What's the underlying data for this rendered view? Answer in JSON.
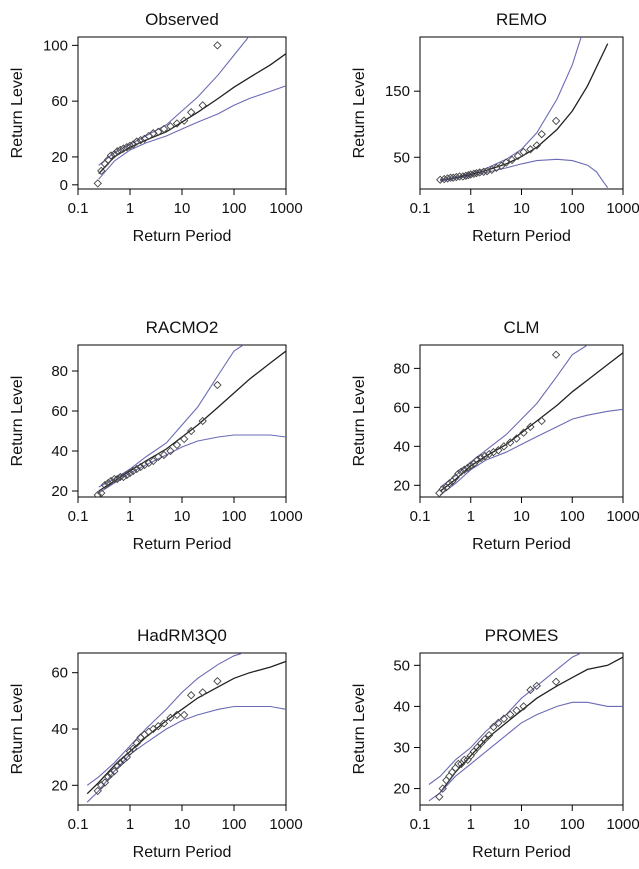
{
  "colors": {
    "fit": "#222222",
    "ci": "#6b6bb5",
    "points": "#444444",
    "axis": "#000000"
  },
  "chart_data": [
    {
      "type": "scatter",
      "title": "Observed",
      "xlabel": "Return Period",
      "ylabel": "Return Level",
      "xscale": "log",
      "xlim": [
        0.1,
        1000
      ],
      "ylim": [
        -3,
        106
      ],
      "xticks": [
        {
          "v": 0.1,
          "label": "0.1"
        },
        {
          "v": 1,
          "label": "1"
        },
        {
          "v": 10,
          "label": "10"
        },
        {
          "v": 100,
          "label": "100"
        },
        {
          "v": 1000,
          "label": "1000"
        }
      ],
      "yticks": [
        {
          "v": 0,
          "label": "0"
        },
        {
          "v": 20,
          "label": "20"
        },
        {
          "v": 60,
          "label": "60"
        },
        {
          "v": 100,
          "label": "100"
        }
      ],
      "series": [
        {
          "role": "fit",
          "x": [
            0.25,
            0.5,
            1,
            2,
            5,
            10,
            20,
            50,
            100,
            200,
            500,
            1000
          ],
          "y": [
            8,
            20,
            27,
            32,
            38,
            45,
            52,
            62,
            70,
            77,
            86,
            94
          ]
        },
        {
          "role": "upper_ci",
          "x": [
            0.25,
            0.5,
            1,
            2,
            5,
            10,
            20,
            50,
            100,
            200
          ],
          "y": [
            14,
            23,
            29,
            35,
            43,
            53,
            63,
            79,
            93,
            107
          ]
        },
        {
          "role": "lower_ci",
          "x": [
            0.25,
            0.5,
            1,
            2,
            5,
            10,
            20,
            50,
            100,
            200,
            500,
            1000
          ],
          "y": [
            4,
            17,
            25,
            30,
            35,
            40,
            45,
            51,
            57,
            62,
            67,
            71
          ]
        },
        {
          "role": "points",
          "x": [
            0.24,
            0.28,
            0.33,
            0.38,
            0.43,
            0.5,
            0.57,
            0.65,
            0.75,
            0.87,
            1.0,
            1.15,
            1.35,
            1.6,
            1.9,
            2.3,
            2.8,
            3.5,
            4.5,
            6.0,
            8.0,
            11,
            15,
            25,
            48
          ],
          "y": [
            1,
            10,
            15,
            18,
            21,
            22,
            24,
            25,
            26,
            27,
            28,
            29,
            31,
            32,
            33,
            35,
            37,
            38,
            40,
            42,
            44,
            46,
            52,
            57,
            100
          ]
        }
      ]
    },
    {
      "type": "scatter",
      "title": "REMO",
      "xlabel": "Return Period",
      "ylabel": "Return Level",
      "xscale": "log",
      "xlim": [
        0.1,
        1000
      ],
      "ylim": [
        2,
        232
      ],
      "xticks": [
        {
          "v": 0.1,
          "label": "0.1"
        },
        {
          "v": 1,
          "label": "1"
        },
        {
          "v": 10,
          "label": "10"
        },
        {
          "v": 100,
          "label": "100"
        },
        {
          "v": 1000,
          "label": "1000"
        }
      ],
      "yticks": [
        {
          "v": 50,
          "label": "50"
        },
        {
          "v": 150,
          "label": "150"
        }
      ],
      "series": [
        {
          "role": "fit",
          "x": [
            0.25,
            0.5,
            1,
            2,
            5,
            10,
            20,
            50,
            100,
            200,
            500
          ],
          "y": [
            15,
            19,
            24,
            30,
            40,
            51,
            65,
            92,
            120,
            158,
            222
          ]
        },
        {
          "role": "upper_ci",
          "x": [
            0.25,
            0.5,
            1,
            2,
            5,
            10,
            20,
            50,
            100,
            150
          ],
          "y": [
            16,
            20,
            26,
            33,
            47,
            62,
            87,
            138,
            190,
            232
          ]
        },
        {
          "role": "lower_ci",
          "x": [
            0.25,
            0.5,
            1,
            2,
            5,
            10,
            20,
            50,
            100,
            200,
            300,
            400,
            500
          ],
          "y": [
            14,
            18,
            22,
            27,
            34,
            40,
            45,
            47,
            45,
            38,
            28,
            14,
            4
          ]
        },
        {
          "role": "points",
          "x": [
            0.25,
            0.3,
            0.35,
            0.4,
            0.45,
            0.52,
            0.6,
            0.7,
            0.8,
            0.9,
            1.0,
            1.15,
            1.3,
            1.5,
            1.8,
            2.1,
            2.6,
            3.2,
            4.0,
            5.0,
            6.5,
            8.5,
            11,
            15,
            20,
            25,
            48
          ],
          "y": [
            16,
            17,
            18,
            19,
            19,
            20,
            21,
            21,
            22,
            23,
            24,
            25,
            26,
            27,
            28,
            29,
            31,
            34,
            37,
            42,
            46,
            52,
            58,
            62,
            68,
            85,
            105
          ]
        }
      ]
    },
    {
      "type": "scatter",
      "title": "RACMO2",
      "xlabel": "Return Period",
      "ylabel": "Return Level",
      "xscale": "log",
      "xlim": [
        0.1,
        1000
      ],
      "ylim": [
        17,
        93
      ],
      "xticks": [
        {
          "v": 0.1,
          "label": "0.1"
        },
        {
          "v": 1,
          "label": "1"
        },
        {
          "v": 10,
          "label": "10"
        },
        {
          "v": 100,
          "label": "100"
        },
        {
          "v": 1000,
          "label": "1000"
        }
      ],
      "yticks": [
        {
          "v": 20,
          "label": "20"
        },
        {
          "v": 40,
          "label": "40"
        },
        {
          "v": 60,
          "label": "60"
        },
        {
          "v": 80,
          "label": "80"
        }
      ],
      "series": [
        {
          "role": "fit",
          "x": [
            0.25,
            0.5,
            1,
            2,
            5,
            10,
            20,
            50,
            100,
            200,
            500,
            1000
          ],
          "y": [
            20,
            25,
            30,
            35,
            41,
            47,
            53,
            62,
            69,
            76,
            84,
            90
          ]
        },
        {
          "role": "upper_ci",
          "x": [
            0.25,
            0.5,
            1,
            2,
            5,
            10,
            20,
            50,
            100,
            150
          ],
          "y": [
            22,
            26,
            31,
            37,
            44,
            53,
            62,
            78,
            90,
            93
          ]
        },
        {
          "role": "lower_ci",
          "x": [
            0.25,
            0.5,
            1,
            2,
            5,
            10,
            20,
            50,
            100,
            200,
            500,
            1000
          ],
          "y": [
            19,
            24,
            29,
            33,
            38,
            42,
            45,
            47,
            48,
            48,
            48,
            47
          ]
        },
        {
          "role": "points",
          "x": [
            0.24,
            0.28,
            0.33,
            0.38,
            0.43,
            0.5,
            0.57,
            0.65,
            0.75,
            0.87,
            1.0,
            1.15,
            1.35,
            1.6,
            1.9,
            2.3,
            2.8,
            3.5,
            4.5,
            6.0,
            8.0,
            11,
            15,
            25,
            48
          ],
          "y": [
            18,
            19,
            23,
            24,
            25,
            26,
            26,
            27,
            27,
            28,
            29,
            30,
            31,
            32,
            33,
            34,
            35,
            37,
            38,
            40,
            43,
            46,
            50,
            55,
            73
          ]
        }
      ]
    },
    {
      "type": "scatter",
      "title": "CLM",
      "xlabel": "Return Period",
      "ylabel": "Return Level",
      "xscale": "log",
      "xlim": [
        0.1,
        1000
      ],
      "ylim": [
        14,
        92
      ],
      "xticks": [
        {
          "v": 0.1,
          "label": "0.1"
        },
        {
          "v": 1,
          "label": "1"
        },
        {
          "v": 10,
          "label": "10"
        },
        {
          "v": 100,
          "label": "100"
        },
        {
          "v": 1000,
          "label": "1000"
        }
      ],
      "yticks": [
        {
          "v": 20,
          "label": "20"
        },
        {
          "v": 40,
          "label": "40"
        },
        {
          "v": 60,
          "label": "60"
        },
        {
          "v": 80,
          "label": "80"
        }
      ],
      "series": [
        {
          "role": "fit",
          "x": [
            0.25,
            0.5,
            1,
            2,
            5,
            10,
            20,
            50,
            100,
            200,
            500,
            1000
          ],
          "y": [
            17,
            23,
            30,
            35,
            41,
            47,
            53,
            61,
            68,
            74,
            82,
            88
          ]
        },
        {
          "role": "upper_ci",
          "x": [
            0.25,
            0.5,
            1,
            2,
            5,
            10,
            20,
            50,
            100,
            200
          ],
          "y": [
            19,
            25,
            32,
            38,
            46,
            54,
            62,
            76,
            87,
            92
          ]
        },
        {
          "role": "lower_ci",
          "x": [
            0.25,
            0.5,
            1,
            2,
            5,
            10,
            20,
            50,
            100,
            200,
            500,
            1000
          ],
          "y": [
            15,
            21,
            28,
            33,
            37,
            41,
            45,
            50,
            54,
            56,
            58,
            59
          ]
        },
        {
          "role": "points",
          "x": [
            0.24,
            0.28,
            0.33,
            0.38,
            0.43,
            0.5,
            0.57,
            0.65,
            0.75,
            0.87,
            1.0,
            1.15,
            1.35,
            1.6,
            1.9,
            2.3,
            2.8,
            3.5,
            4.5,
            6.0,
            8.0,
            11,
            15,
            25,
            48
          ],
          "y": [
            16,
            18,
            19,
            21,
            22,
            24,
            26,
            27,
            28,
            29,
            30,
            31,
            33,
            34,
            35,
            36,
            37,
            38,
            40,
            42,
            44,
            47,
            50,
            53,
            87
          ]
        }
      ]
    },
    {
      "type": "scatter",
      "title": "HadRM3Q0",
      "xlabel": "Return Period",
      "ylabel": "Return Level",
      "xscale": "log",
      "xlim": [
        0.1,
        1000
      ],
      "ylim": [
        13,
        67
      ],
      "xticks": [
        {
          "v": 0.1,
          "label": "0.1"
        },
        {
          "v": 1,
          "label": "1"
        },
        {
          "v": 10,
          "label": "10"
        },
        {
          "v": 100,
          "label": "100"
        },
        {
          "v": 1000,
          "label": "1000"
        }
      ],
      "yticks": [
        {
          "v": 20,
          "label": "20"
        },
        {
          "v": 40,
          "label": "40"
        },
        {
          "v": 60,
          "label": "60"
        }
      ],
      "series": [
        {
          "role": "fit",
          "x": [
            0.15,
            0.25,
            0.5,
            1,
            2,
            5,
            10,
            20,
            50,
            100,
            200,
            500,
            1000
          ],
          "y": [
            17,
            21,
            27,
            32,
            37,
            43,
            47,
            51,
            55,
            58,
            60,
            62,
            64
          ]
        },
        {
          "role": "upper_ci",
          "x": [
            0.15,
            0.25,
            0.5,
            1,
            2,
            5,
            10,
            20,
            50,
            100,
            150
          ],
          "y": [
            20,
            23,
            28,
            34,
            40,
            47,
            53,
            58,
            63,
            66,
            67
          ]
        },
        {
          "role": "lower_ci",
          "x": [
            0.15,
            0.25,
            0.5,
            1,
            2,
            5,
            10,
            20,
            50,
            100,
            200,
            500,
            1000
          ],
          "y": [
            14,
            18,
            25,
            31,
            35,
            40,
            43,
            45,
            47,
            48,
            48,
            48,
            47
          ]
        },
        {
          "role": "points",
          "x": [
            0.24,
            0.28,
            0.33,
            0.38,
            0.43,
            0.5,
            0.57,
            0.65,
            0.75,
            0.87,
            1.0,
            1.15,
            1.35,
            1.6,
            1.9,
            2.3,
            2.8,
            3.5,
            4.5,
            6.0,
            8.0,
            11,
            15,
            25,
            48
          ],
          "y": [
            18,
            20,
            21,
            23,
            24,
            25,
            27,
            28,
            29,
            30,
            32,
            33,
            35,
            37,
            38,
            39,
            40,
            41,
            42,
            44,
            45,
            45,
            52,
            53,
            57
          ]
        }
      ]
    },
    {
      "type": "scatter",
      "title": "PROMES",
      "xlabel": "Return Period",
      "ylabel": "Return Level",
      "xscale": "log",
      "xlim": [
        0.1,
        1000
      ],
      "ylim": [
        16,
        53
      ],
      "xticks": [
        {
          "v": 0.1,
          "label": "0.1"
        },
        {
          "v": 1,
          "label": "1"
        },
        {
          "v": 10,
          "label": "10"
        },
        {
          "v": 100,
          "label": "100"
        },
        {
          "v": 1000,
          "label": "1000"
        }
      ],
      "yticks": [
        {
          "v": 20,
          "label": "20"
        },
        {
          "v": 30,
          "label": "30"
        },
        {
          "v": 40,
          "label": "40"
        },
        {
          "v": 50,
          "label": "50"
        }
      ],
      "series": [
        {
          "role": "fit",
          "x": [
            0.25,
            0.5,
            1,
            2,
            5,
            10,
            20,
            50,
            100,
            200,
            500,
            1000
          ],
          "y": [
            19,
            24,
            28,
            32,
            36,
            39,
            42,
            45,
            47,
            49,
            50,
            52
          ]
        },
        {
          "role": "upper_ci",
          "x": [
            0.15,
            0.25,
            0.5,
            1,
            2,
            5,
            10,
            20,
            50,
            100,
            150
          ],
          "y": [
            21,
            23,
            27,
            30,
            34,
            38,
            42,
            45,
            49,
            52,
            53
          ]
        },
        {
          "role": "lower_ci",
          "x": [
            0.15,
            0.25,
            0.5,
            1,
            2,
            5,
            10,
            20,
            50,
            100,
            200,
            500,
            1000
          ],
          "y": [
            17,
            19,
            23,
            26,
            29,
            33,
            36,
            38,
            40,
            41,
            41,
            40,
            40
          ]
        },
        {
          "role": "points",
          "x": [
            0.24,
            0.28,
            0.33,
            0.38,
            0.43,
            0.5,
            0.57,
            0.65,
            0.75,
            0.87,
            1.0,
            1.15,
            1.35,
            1.6,
            1.9,
            2.3,
            2.8,
            3.5,
            4.5,
            6.0,
            8.0,
            11,
            15,
            20,
            48
          ],
          "y": [
            18,
            20,
            22,
            23,
            24,
            25,
            26,
            26,
            27,
            27,
            28,
            29,
            30,
            31,
            32,
            33,
            35,
            36,
            37,
            38,
            39,
            40,
            44,
            45,
            46
          ]
        }
      ]
    }
  ]
}
